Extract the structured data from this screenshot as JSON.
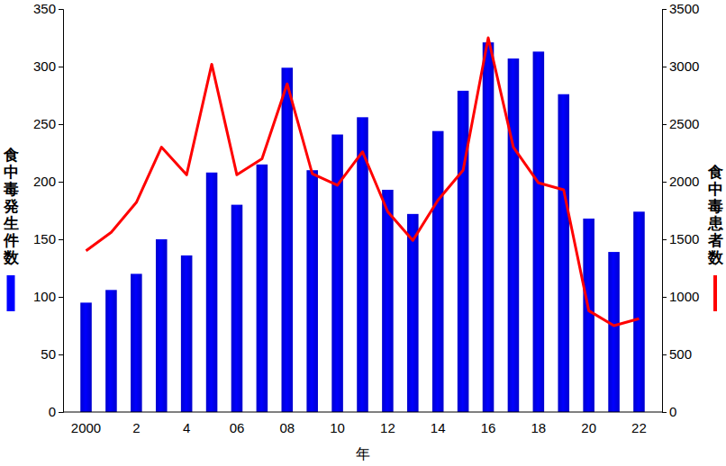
{
  "chart_data": {
    "type": "bar",
    "x_label": "年",
    "categories": [
      "2000",
      null,
      "2",
      null,
      "4",
      null,
      "06",
      null,
      "08",
      null,
      "10",
      null,
      "12",
      null,
      "14",
      null,
      "16",
      null,
      "18",
      null,
      "20",
      null,
      "22"
    ],
    "series": [
      {
        "name": "食中毒発生件数",
        "type": "bar",
        "color": "#0000ff",
        "values": [
          95,
          106,
          120,
          150,
          136,
          208,
          180,
          215,
          299,
          210,
          241,
          256,
          193,
          172,
          244,
          279,
          321,
          307,
          313,
          276,
          168,
          139,
          174
        ]
      },
      {
        "name": "食中毒患者数",
        "type": "line",
        "color": "#ff0000",
        "axis": "y2",
        "values": [
          1400,
          1560,
          1820,
          2300,
          2060,
          3020,
          2060,
          2200,
          2850,
          2070,
          1970,
          2260,
          1740,
          1490,
          1840,
          2100,
          3250,
          2300,
          1990,
          1930,
          880,
          750,
          810
        ]
      }
    ],
    "ylim": [
      0,
      350
    ],
    "yticks": [
      0,
      50,
      100,
      150,
      200,
      250,
      300,
      350
    ],
    "y2lim": [
      0,
      3500
    ],
    "y2ticks": [
      0,
      500,
      1000,
      1500,
      2000,
      2500,
      3000,
      3500
    ]
  }
}
